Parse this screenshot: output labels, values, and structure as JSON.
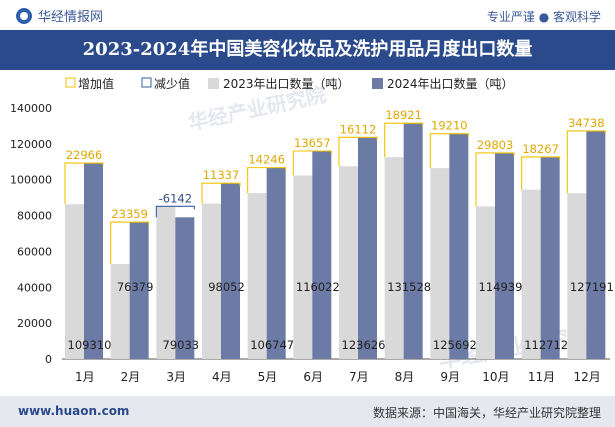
{
  "header": {
    "brand": "华经情报网",
    "tagline": "专业严谨 ● 客观科学"
  },
  "footer": {
    "url": "www.huaon.com",
    "source": "数据来源：中国海关，华经产业研究院整理"
  },
  "watermark": "华经产业研究院",
  "colors": {
    "increase": "#f2c200",
    "decrease": "#3a5fa0",
    "bar2023": "#d9d9d9",
    "bar2024": "#6c7ba6",
    "title_bg": "#2b4a8b"
  },
  "chart_data": {
    "type": "bar",
    "title": "2023-2024年中国美容化妆品及洗护用品月度出口数量",
    "legend": [
      "增加值",
      "减少值",
      "2023年出口数量（吨）",
      "2024年出口数量（吨）"
    ],
    "categories": [
      "1月",
      "2月",
      "3月",
      "4月",
      "5月",
      "6月",
      "7月",
      "8月",
      "9月",
      "10月",
      "11月",
      "12月"
    ],
    "series": [
      {
        "name": "2023年出口数量（吨）",
        "values": [
          86344,
          53020,
          85175,
          86715,
          92501,
          102365,
          107514,
          112607,
          106482,
          85136,
          94445,
          92453
        ]
      },
      {
        "name": "2024年出口数量（吨）",
        "values": [
          109310,
          76379,
          79033,
          98052,
          106747,
          116022,
          123626,
          131528,
          125692,
          114939,
          112712,
          127191
        ]
      }
    ],
    "change_labels": [
      "22966",
      "23359",
      "-6142",
      "11337",
      "14246",
      "13657",
      "16112",
      "18921",
      "19210",
      "29803",
      "18267",
      "34738"
    ],
    "bar_labels": [
      "109310",
      "76379",
      "79033",
      "98052",
      "106747",
      "116022",
      "123626",
      "131528",
      "125692",
      "114939",
      "112712",
      "127191"
    ],
    "ylim": [
      0,
      140000
    ],
    "yticks": [
      "0",
      "20000",
      "40000",
      "60000",
      "80000",
      "100000",
      "120000",
      "140000"
    ],
    "ytick_values": [
      0,
      20000,
      40000,
      60000,
      80000,
      100000,
      120000,
      140000
    ]
  }
}
